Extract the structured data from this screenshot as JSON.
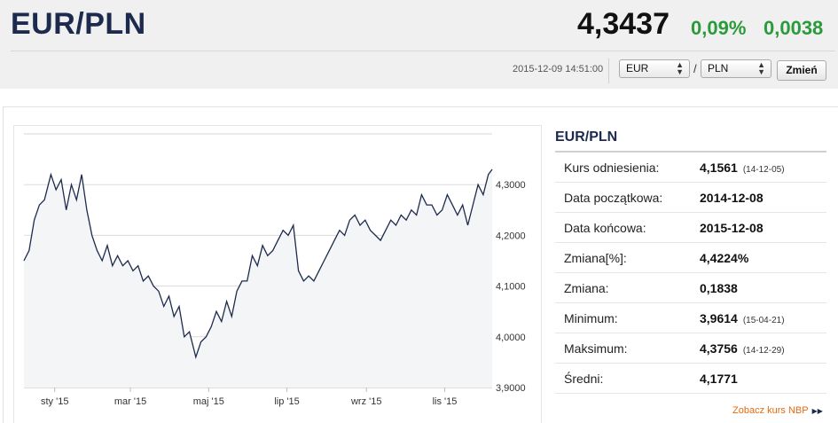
{
  "header": {
    "pair": "EUR/PLN",
    "rate": "4,3437",
    "change_pct": "0,09%",
    "change_abs": "0,0038",
    "timestamp": "2015-12-09 14:51:00",
    "from_currency": "EUR",
    "separator": "/",
    "to_currency": "PLN",
    "change_button": "Zmień"
  },
  "colors": {
    "accent": "#1c2a4d",
    "positive": "#2a9a3a",
    "link": "#e36b12",
    "header_bg": "#f0f0f0"
  },
  "stats": {
    "title": "EUR/PLN",
    "rows": [
      {
        "label": "Kurs odniesienia:",
        "value": "4,1561",
        "date": "(14-12-05)"
      },
      {
        "label": "Data początkowa:",
        "value": "2014-12-08",
        "date": ""
      },
      {
        "label": "Data końcowa:",
        "value": "2015-12-08",
        "date": ""
      },
      {
        "label": "Zmiana[%]:",
        "value": "4,4224%",
        "date": ""
      },
      {
        "label": "Zmiana:",
        "value": "0,1838",
        "date": ""
      },
      {
        "label": "Minimum:",
        "value": "3,9614",
        "date": "(15-04-21)"
      },
      {
        "label": "Maksimum:",
        "value": "4,3756",
        "date": "(14-12-29)"
      },
      {
        "label": "Średni:",
        "value": "4,1771",
        "date": ""
      }
    ],
    "nbp_link": "Zobacz kurs NBP",
    "nbp_icon": "double-chevron-right-icon"
  },
  "chart_data": {
    "type": "area",
    "x_tick_labels": [
      "sty '15",
      "mar '15",
      "maj '15",
      "lip '15",
      "wrz '15",
      "lis '15"
    ],
    "y_tick_labels": [
      "4,3000",
      "4,2000",
      "4,1000",
      "4,0000",
      "3,9000"
    ],
    "y_ticks": [
      4.3,
      4.2,
      4.1,
      4.0,
      3.9
    ],
    "ylim": [
      3.9,
      4.4
    ],
    "xlim": [
      "2014-12-08",
      "2015-12-08"
    ],
    "x_ticks": [
      "2015-01-01",
      "2015-03-01",
      "2015-05-01",
      "2015-07-01",
      "2015-09-01",
      "2015-11-01"
    ],
    "grid": true,
    "series": [
      {
        "points": [
          [
            "2014-12-08",
            4.15
          ],
          [
            "2014-12-12",
            4.17
          ],
          [
            "2014-12-16",
            4.23
          ],
          [
            "2014-12-20",
            4.26
          ],
          [
            "2014-12-24",
            4.27
          ],
          [
            "2014-12-29",
            4.32
          ],
          [
            "2015-01-02",
            4.29
          ],
          [
            "2015-01-06",
            4.31
          ],
          [
            "2015-01-10",
            4.25
          ],
          [
            "2015-01-14",
            4.3
          ],
          [
            "2015-01-18",
            4.27
          ],
          [
            "2015-01-22",
            4.32
          ],
          [
            "2015-01-26",
            4.25
          ],
          [
            "2015-01-30",
            4.2
          ],
          [
            "2015-02-03",
            4.17
          ],
          [
            "2015-02-07",
            4.15
          ],
          [
            "2015-02-11",
            4.18
          ],
          [
            "2015-02-15",
            4.14
          ],
          [
            "2015-02-19",
            4.16
          ],
          [
            "2015-02-23",
            4.14
          ],
          [
            "2015-02-27",
            4.15
          ],
          [
            "2015-03-03",
            4.13
          ],
          [
            "2015-03-07",
            4.14
          ],
          [
            "2015-03-11",
            4.11
          ],
          [
            "2015-03-15",
            4.12
          ],
          [
            "2015-03-19",
            4.1
          ],
          [
            "2015-03-23",
            4.09
          ],
          [
            "2015-03-27",
            4.06
          ],
          [
            "2015-03-31",
            4.08
          ],
          [
            "2015-04-04",
            4.04
          ],
          [
            "2015-04-08",
            4.06
          ],
          [
            "2015-04-12",
            4.0
          ],
          [
            "2015-04-16",
            4.01
          ],
          [
            "2015-04-21",
            3.96
          ],
          [
            "2015-04-25",
            3.99
          ],
          [
            "2015-04-29",
            4.0
          ],
          [
            "2015-05-03",
            4.02
          ],
          [
            "2015-05-07",
            4.05
          ],
          [
            "2015-05-11",
            4.03
          ],
          [
            "2015-05-15",
            4.07
          ],
          [
            "2015-05-19",
            4.04
          ],
          [
            "2015-05-23",
            4.09
          ],
          [
            "2015-05-27",
            4.11
          ],
          [
            "2015-05-31",
            4.11
          ],
          [
            "2015-06-04",
            4.16
          ],
          [
            "2015-06-08",
            4.14
          ],
          [
            "2015-06-12",
            4.18
          ],
          [
            "2015-06-16",
            4.16
          ],
          [
            "2015-06-20",
            4.17
          ],
          [
            "2015-06-24",
            4.19
          ],
          [
            "2015-06-28",
            4.21
          ],
          [
            "2015-07-02",
            4.2
          ],
          [
            "2015-07-06",
            4.22
          ],
          [
            "2015-07-10",
            4.13
          ],
          [
            "2015-07-14",
            4.11
          ],
          [
            "2015-07-18",
            4.12
          ],
          [
            "2015-07-22",
            4.11
          ],
          [
            "2015-07-26",
            4.13
          ],
          [
            "2015-07-30",
            4.15
          ],
          [
            "2015-08-03",
            4.17
          ],
          [
            "2015-08-07",
            4.19
          ],
          [
            "2015-08-11",
            4.21
          ],
          [
            "2015-08-15",
            4.2
          ],
          [
            "2015-08-19",
            4.23
          ],
          [
            "2015-08-23",
            4.24
          ],
          [
            "2015-08-27",
            4.22
          ],
          [
            "2015-08-31",
            4.23
          ],
          [
            "2015-09-04",
            4.21
          ],
          [
            "2015-09-08",
            4.2
          ],
          [
            "2015-09-12",
            4.19
          ],
          [
            "2015-09-16",
            4.21
          ],
          [
            "2015-09-20",
            4.23
          ],
          [
            "2015-09-24",
            4.22
          ],
          [
            "2015-09-28",
            4.24
          ],
          [
            "2015-10-02",
            4.23
          ],
          [
            "2015-10-06",
            4.25
          ],
          [
            "2015-10-10",
            4.24
          ],
          [
            "2015-10-14",
            4.28
          ],
          [
            "2015-10-18",
            4.26
          ],
          [
            "2015-10-22",
            4.26
          ],
          [
            "2015-10-26",
            4.24
          ],
          [
            "2015-10-30",
            4.25
          ],
          [
            "2015-11-03",
            4.28
          ],
          [
            "2015-11-07",
            4.26
          ],
          [
            "2015-11-11",
            4.24
          ],
          [
            "2015-11-15",
            4.26
          ],
          [
            "2015-11-19",
            4.22
          ],
          [
            "2015-11-23",
            4.26
          ],
          [
            "2015-11-27",
            4.3
          ],
          [
            "2015-12-01",
            4.28
          ],
          [
            "2015-12-05",
            4.32
          ],
          [
            "2015-12-08",
            4.33
          ]
        ]
      }
    ]
  }
}
